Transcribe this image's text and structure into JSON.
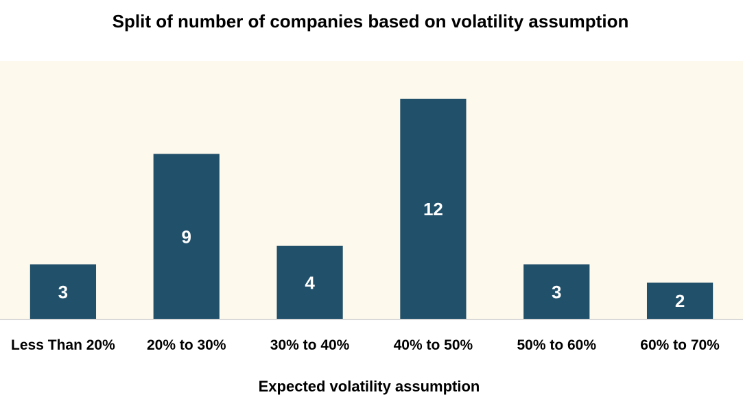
{
  "chart_data": {
    "type": "bar",
    "title": "Split of number of companies based on volatility assumption",
    "xlabel": "Expected volatility assumption",
    "ylabel": "",
    "categories": [
      "Less Than 20%",
      "20% to 30%",
      "30% to 40%",
      "40% to 50%",
      "50% to 60%",
      "60% to 70%"
    ],
    "values": [
      3,
      9,
      4,
      12,
      3,
      2
    ],
    "ylim": [
      0,
      14
    ],
    "grid": false,
    "legend": "none",
    "colors": {
      "bar": "#21506B",
      "plot_background": "#FDF9EC",
      "axis_line": "#D9D9D9",
      "data_label": "#FFFFFF"
    }
  }
}
